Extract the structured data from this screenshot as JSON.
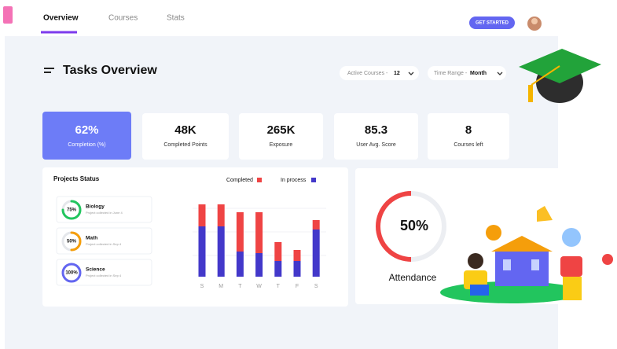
{
  "nav": {
    "tabs": [
      "Overview",
      "Courses",
      "Stats"
    ],
    "button": "GET STARTED"
  },
  "header": {
    "title": "Tasks Overview",
    "filters": [
      {
        "label": "Active Courses -",
        "value": "12"
      },
      {
        "label": "Time Range -",
        "value": "Month"
      }
    ]
  },
  "stats": [
    {
      "value": "62%",
      "label": "Completion (%)"
    },
    {
      "value": "48K",
      "label": "Completed Points"
    },
    {
      "value": "265K",
      "label": "Exposure"
    },
    {
      "value": "85.3",
      "label": "User Avg. Score"
    },
    {
      "value": "8",
      "label": "Courses left"
    }
  ],
  "projects": {
    "title": "Projects Status",
    "items": [
      {
        "name": "Biology",
        "note": "Project collected in June 4",
        "progress": {
          "value": 75,
          "label": "75%"
        },
        "color": "#22c55e"
      },
      {
        "name": "Math",
        "note": "Project collected in Sep 4",
        "progress": {
          "value": 50,
          "label": "50%"
        },
        "color": "#f59e0b"
      },
      {
        "name": "Science",
        "note": "Project collected in Sep 4",
        "progress": {
          "value": 100,
          "label": "100%"
        },
        "color": "#6366f1"
      }
    ]
  },
  "chart_data": {
    "type": "bar",
    "stacked": true,
    "categories": [
      "S",
      "M",
      "T",
      "W",
      "T",
      "F",
      "S"
    ],
    "series": [
      {
        "name": "In process",
        "color": "#4338ca",
        "values": [
          64,
          64,
          32,
          30,
          20,
          20,
          60
        ]
      },
      {
        "name": "Completed",
        "color": "#ef4444",
        "values": [
          28,
          28,
          50,
          52,
          24,
          14,
          12
        ]
      }
    ],
    "ylim": [
      0,
      100
    ]
  },
  "attendance": {
    "title": "Attendance",
    "progress": {
      "value": 50,
      "label": "50%"
    },
    "color": "#ef4444"
  }
}
